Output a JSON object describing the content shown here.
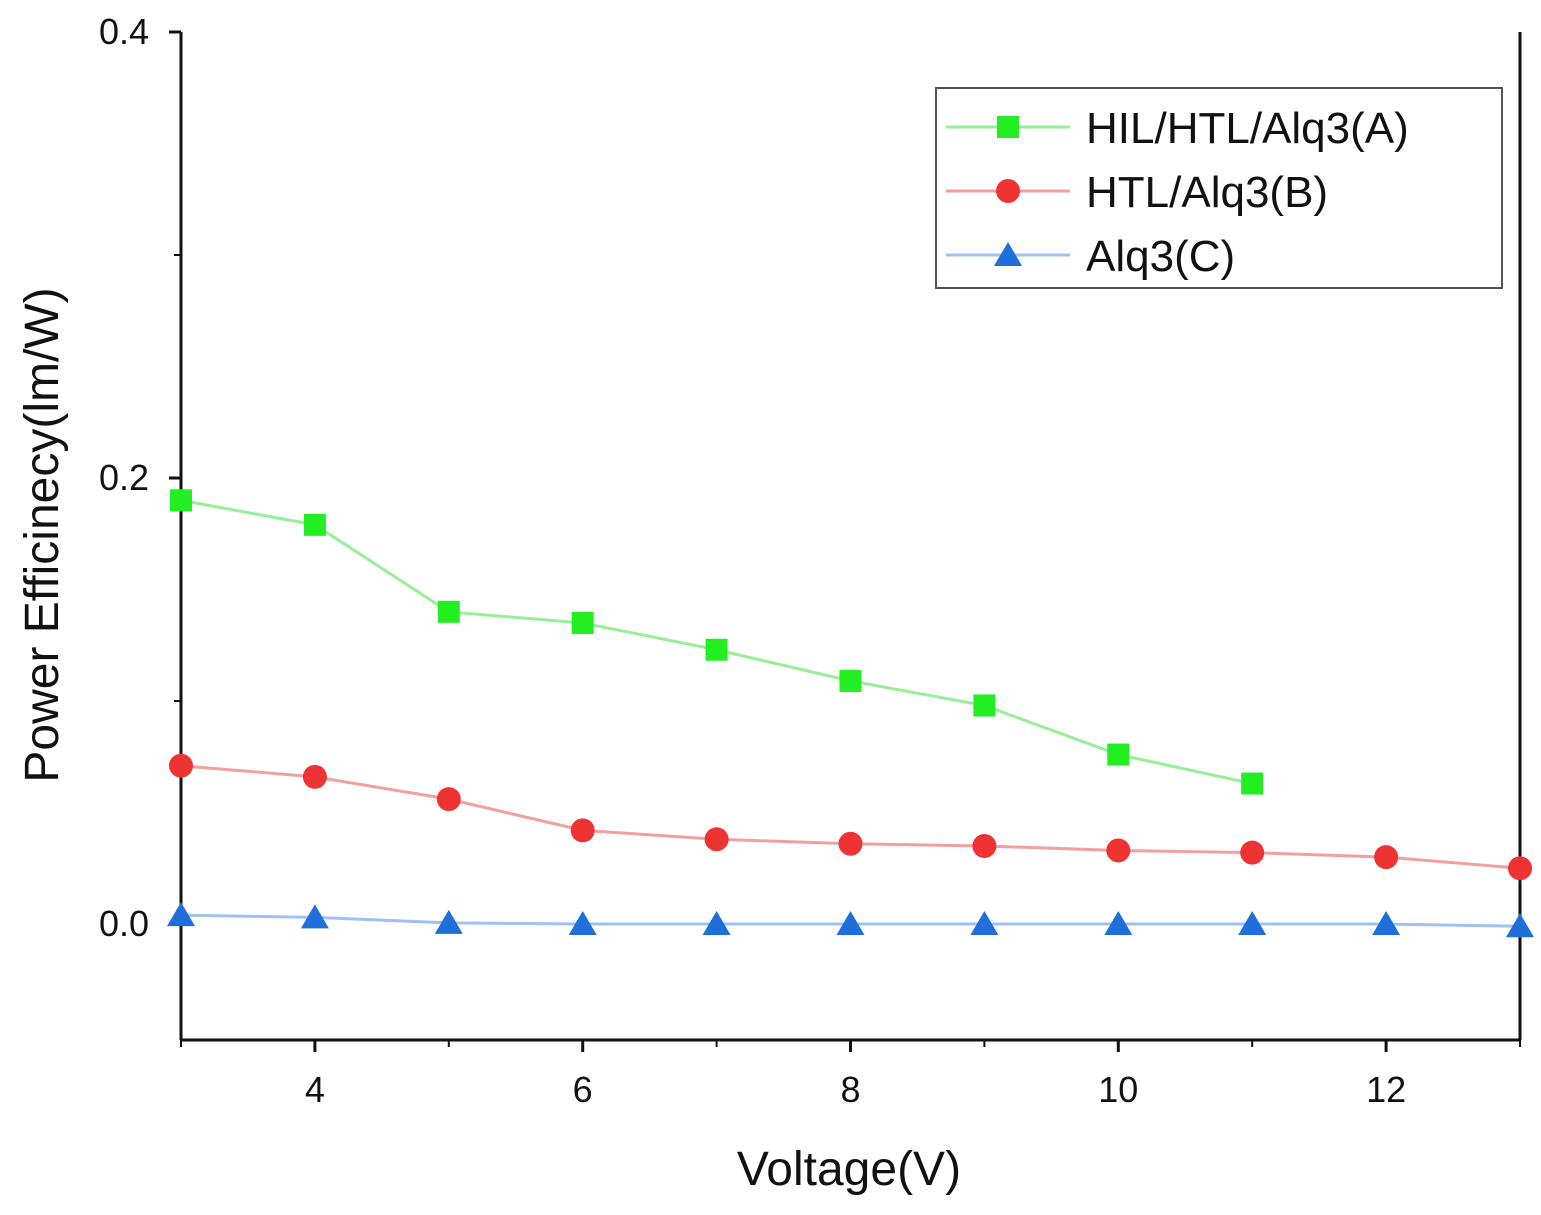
{
  "chart_data": {
    "type": "line",
    "title": "",
    "xlabel": "Voltage(V)",
    "ylabel": "Power Efficinecy(lm/W)",
    "xlim": [
      3,
      13
    ],
    "ylim": [
      -0.052,
      0.4
    ],
    "xticks": [
      4,
      6,
      8,
      10,
      12
    ],
    "xtick_labels": [
      "4",
      "6",
      "8",
      "10",
      "12"
    ],
    "yticks": [
      0.0,
      0.2,
      0.4
    ],
    "ytick_labels": [
      "0.0",
      "0.2",
      "0.4"
    ],
    "grid": false,
    "legend_position": "top-right",
    "series": [
      {
        "name": "HIL/HTL/Alq3(A)",
        "color": "#22ee22",
        "line_color": "#99ee99",
        "marker": "square",
        "x": [
          3,
          4,
          5,
          6,
          7,
          8,
          9,
          10,
          11
        ],
        "values": [
          0.19,
          0.179,
          0.14,
          0.135,
          0.123,
          0.109,
          0.098,
          0.076,
          0.063
        ]
      },
      {
        "name": "HTL/Alq3(B)",
        "color": "#ee3333",
        "line_color": "#f0a0a0",
        "marker": "circle",
        "x": [
          3,
          4,
          5,
          6,
          7,
          8,
          9,
          10,
          11,
          12,
          13
        ],
        "values": [
          0.071,
          0.066,
          0.056,
          0.042,
          0.038,
          0.036,
          0.035,
          0.033,
          0.032,
          0.03,
          0.025
        ]
      },
      {
        "name": "Alq3(C)",
        "color": "#1e6fd9",
        "line_color": "#9fc0f0",
        "marker": "triangle",
        "x": [
          3,
          4,
          5,
          6,
          7,
          8,
          9,
          10,
          11,
          12,
          13
        ],
        "values": [
          0.004,
          0.003,
          0.0005,
          0.0,
          0.0,
          0.0,
          0.0,
          0.0,
          0.0,
          0.0,
          -0.001
        ]
      }
    ]
  }
}
